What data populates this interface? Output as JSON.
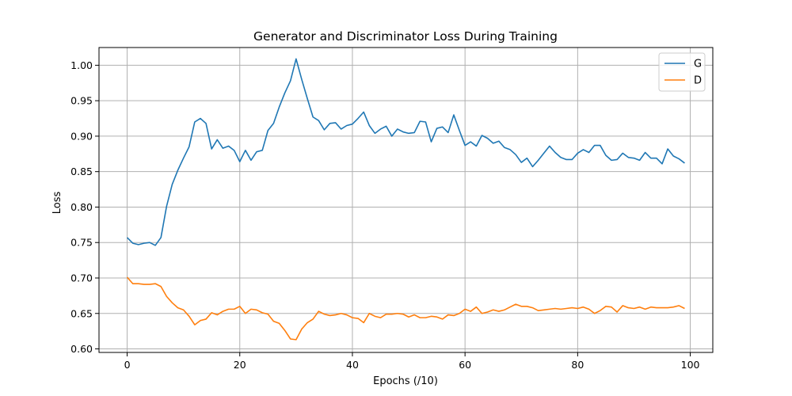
{
  "chart_data": {
    "type": "line",
    "title": "Generator and Discriminator Loss During Training",
    "xlabel": "Epochs (/10)",
    "ylabel": "Loss",
    "xlim": [
      -5,
      104
    ],
    "ylim": [
      0.595,
      1.025
    ],
    "xticks": [
      0,
      20,
      40,
      60,
      80,
      100
    ],
    "yticks": [
      0.6,
      0.65,
      0.7,
      0.75,
      0.8,
      0.85,
      0.9,
      0.95,
      1.0
    ],
    "grid": true,
    "legend": {
      "placement": "top-right"
    },
    "series": [
      {
        "name": "G",
        "color": "#1f77b4",
        "x": [
          0,
          1,
          2,
          3,
          4,
          5,
          6,
          7,
          8,
          9,
          10,
          11,
          12,
          13,
          14,
          15,
          16,
          17,
          18,
          19,
          20,
          21,
          22,
          23,
          24,
          25,
          26,
          27,
          28,
          29,
          30,
          31,
          32,
          33,
          34,
          35,
          36,
          37,
          38,
          39,
          40,
          41,
          42,
          43,
          44,
          45,
          46,
          47,
          48,
          49,
          50,
          51,
          52,
          53,
          54,
          55,
          56,
          57,
          58,
          59,
          60,
          61,
          62,
          63,
          64,
          65,
          66,
          67,
          68,
          69,
          70,
          71,
          72,
          73,
          74,
          75,
          76,
          77,
          78,
          79,
          80,
          81,
          82,
          83,
          84,
          85,
          86,
          87,
          88,
          89,
          90,
          91,
          92,
          93,
          94,
          95,
          96,
          97,
          98,
          99
        ],
        "values": [
          0.757,
          0.749,
          0.747,
          0.749,
          0.75,
          0.746,
          0.757,
          0.801,
          0.832,
          0.852,
          0.869,
          0.885,
          0.92,
          0.925,
          0.918,
          0.882,
          0.895,
          0.883,
          0.886,
          0.88,
          0.864,
          0.88,
          0.866,
          0.878,
          0.88,
          0.908,
          0.918,
          0.941,
          0.961,
          0.978,
          1.009,
          0.98,
          0.953,
          0.927,
          0.922,
          0.909,
          0.918,
          0.919,
          0.91,
          0.915,
          0.917,
          0.925,
          0.934,
          0.915,
          0.904,
          0.91,
          0.914,
          0.9,
          0.91,
          0.906,
          0.904,
          0.905,
          0.921,
          0.92,
          0.892,
          0.911,
          0.913,
          0.905,
          0.93,
          0.908,
          0.887,
          0.892,
          0.886,
          0.901,
          0.897,
          0.89,
          0.893,
          0.884,
          0.881,
          0.874,
          0.863,
          0.869,
          0.857,
          0.866,
          0.876,
          0.886,
          0.877,
          0.87,
          0.867,
          0.867,
          0.876,
          0.881,
          0.877,
          0.887,
          0.887,
          0.873,
          0.866,
          0.867,
          0.876,
          0.87,
          0.869,
          0.866,
          0.877,
          0.869,
          0.869,
          0.861,
          0.882,
          0.872,
          0.868,
          0.862
        ]
      },
      {
        "name": "D",
        "color": "#ff7f0e",
        "x": [
          0,
          1,
          2,
          3,
          4,
          5,
          6,
          7,
          8,
          9,
          10,
          11,
          12,
          13,
          14,
          15,
          16,
          17,
          18,
          19,
          20,
          21,
          22,
          23,
          24,
          25,
          26,
          27,
          28,
          29,
          30,
          31,
          32,
          33,
          34,
          35,
          36,
          37,
          38,
          39,
          40,
          41,
          42,
          43,
          44,
          45,
          46,
          47,
          48,
          49,
          50,
          51,
          52,
          53,
          54,
          55,
          56,
          57,
          58,
          59,
          60,
          61,
          62,
          63,
          64,
          65,
          66,
          67,
          68,
          69,
          70,
          71,
          72,
          73,
          74,
          75,
          76,
          77,
          78,
          79,
          80,
          81,
          82,
          83,
          84,
          85,
          86,
          87,
          88,
          89,
          90,
          91,
          92,
          93,
          94,
          95,
          96,
          97,
          98,
          99
        ],
        "values": [
          0.701,
          0.692,
          0.692,
          0.691,
          0.691,
          0.692,
          0.688,
          0.674,
          0.665,
          0.658,
          0.655,
          0.646,
          0.634,
          0.64,
          0.642,
          0.651,
          0.648,
          0.653,
          0.656,
          0.656,
          0.66,
          0.65,
          0.656,
          0.655,
          0.651,
          0.649,
          0.639,
          0.636,
          0.626,
          0.614,
          0.613,
          0.628,
          0.637,
          0.642,
          0.653,
          0.649,
          0.647,
          0.648,
          0.65,
          0.648,
          0.644,
          0.643,
          0.637,
          0.65,
          0.646,
          0.644,
          0.649,
          0.649,
          0.65,
          0.649,
          0.645,
          0.648,
          0.644,
          0.644,
          0.646,
          0.645,
          0.642,
          0.648,
          0.647,
          0.65,
          0.656,
          0.653,
          0.659,
          0.65,
          0.652,
          0.655,
          0.653,
          0.655,
          0.659,
          0.663,
          0.66,
          0.66,
          0.658,
          0.654,
          0.655,
          0.656,
          0.657,
          0.656,
          0.657,
          0.658,
          0.657,
          0.659,
          0.656,
          0.65,
          0.654,
          0.66,
          0.659,
          0.652,
          0.661,
          0.658,
          0.657,
          0.659,
          0.656,
          0.659,
          0.658,
          0.658,
          0.658,
          0.659,
          0.661,
          0.657
        ]
      }
    ]
  }
}
